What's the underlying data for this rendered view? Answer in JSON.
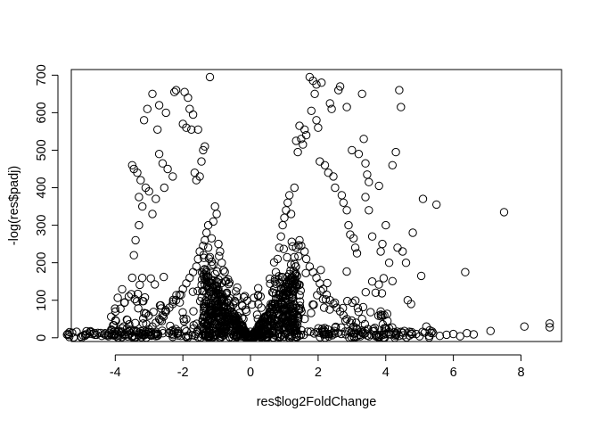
{
  "chart_data": {
    "type": "scatter",
    "title": "",
    "xlabel": "res$log2FoldChange",
    "ylabel": "-log(res$padj)",
    "xlim": [
      -5.3,
      9.2
    ],
    "ylim": [
      -10,
      715
    ],
    "xticks": [
      -4,
      -2,
      0,
      2,
      4,
      6,
      8
    ],
    "yticks": [
      0,
      100,
      200,
      300,
      400,
      500,
      600,
      700
    ],
    "xtick_labels": [
      "-4",
      "-2",
      "0",
      "2",
      "4",
      "6",
      "8"
    ],
    "ytick_labels": [
      "0",
      "100",
      "200",
      "300",
      "400",
      "500",
      "600",
      "700"
    ],
    "marker": "open-circle",
    "grid": false,
    "legend": "none",
    "colors": {
      "point": "#000000",
      "axis": "#000000",
      "background": "#ffffff"
    },
    "series": [
      {
        "values": [
          [
            -4.95,
            6
          ],
          [
            -4.6,
            8
          ],
          [
            -4.4,
            5
          ],
          [
            -4.3,
            12
          ],
          [
            -4.2,
            4
          ],
          [
            -4.1,
            20
          ],
          [
            -4.0,
            10
          ],
          [
            -3.9,
            6
          ],
          [
            -3.8,
            15
          ],
          [
            -3.75,
            30
          ],
          [
            -3.7,
            9
          ],
          [
            -3.6,
            18
          ],
          [
            -3.5,
            5
          ],
          [
            -3.6,
            110
          ],
          [
            -3.5,
            160
          ],
          [
            -3.45,
            220
          ],
          [
            -3.4,
            260
          ],
          [
            -3.3,
            300
          ],
          [
            -3.2,
            350
          ],
          [
            -3.5,
            460
          ],
          [
            -3.45,
            450
          ],
          [
            -3.35,
            440
          ],
          [
            -3.25,
            420
          ],
          [
            -3.1,
            400
          ],
          [
            -3.0,
            390
          ],
          [
            -3.3,
            375
          ],
          [
            -3.15,
            580
          ],
          [
            -3.05,
            610
          ],
          [
            -2.9,
            650
          ],
          [
            -2.7,
            620
          ],
          [
            -2.5,
            600
          ],
          [
            -2.25,
            655
          ],
          [
            -2.2,
            660
          ],
          [
            -1.95,
            655
          ],
          [
            -1.85,
            640
          ],
          [
            -1.8,
            610
          ],
          [
            -1.7,
            595
          ],
          [
            -2.0,
            570
          ],
          [
            -1.9,
            560
          ],
          [
            -1.75,
            555
          ],
          [
            -1.55,
            555
          ],
          [
            -1.35,
            510
          ],
          [
            -1.4,
            500
          ],
          [
            -1.45,
            470
          ],
          [
            -1.2,
            695
          ],
          [
            -1.5,
            430
          ],
          [
            -1.65,
            440
          ],
          [
            -1.6,
            420
          ],
          [
            -2.75,
            555
          ],
          [
            -2.7,
            490
          ],
          [
            -2.6,
            465
          ],
          [
            -2.45,
            450
          ],
          [
            -2.3,
            430
          ],
          [
            -2.55,
            400
          ],
          [
            -2.8,
            370
          ],
          [
            -2.9,
            330
          ],
          [
            -1.05,
            350
          ],
          [
            -1.0,
            330
          ],
          [
            -1.1,
            310
          ],
          [
            -1.25,
            300
          ],
          [
            -1.3,
            280
          ],
          [
            -1.15,
            265
          ],
          [
            -0.95,
            250
          ],
          [
            -0.9,
            230
          ],
          [
            -0.85,
            200
          ],
          [
            -0.8,
            180
          ],
          [
            -0.75,
            150
          ],
          [
            -0.7,
            120
          ],
          [
            -0.65,
            100
          ],
          [
            -0.6,
            85
          ],
          [
            -0.55,
            70
          ],
          [
            -0.5,
            55
          ],
          [
            -0.45,
            45
          ],
          [
            -0.4,
            35
          ],
          [
            -0.35,
            28
          ],
          [
            -0.3,
            20
          ],
          [
            -0.25,
            15
          ],
          [
            -0.2,
            10
          ],
          [
            -0.1,
            5
          ],
          [
            0.1,
            5
          ],
          [
            0.2,
            12
          ],
          [
            0.3,
            22
          ],
          [
            0.4,
            35
          ],
          [
            0.5,
            60
          ],
          [
            0.6,
            90
          ],
          [
            0.7,
            130
          ],
          [
            0.75,
            175
          ],
          [
            0.8,
            210
          ],
          [
            0.85,
            240
          ],
          [
            0.9,
            270
          ],
          [
            0.95,
            300
          ],
          [
            1.0,
            320
          ],
          [
            1.05,
            340
          ],
          [
            1.1,
            360
          ],
          [
            1.15,
            380
          ],
          [
            1.2,
            330
          ],
          [
            1.3,
            400
          ],
          [
            1.35,
            525
          ],
          [
            1.45,
            565
          ],
          [
            1.4,
            495
          ],
          [
            1.5,
            530
          ],
          [
            1.55,
            515
          ],
          [
            1.6,
            555
          ],
          [
            1.65,
            540
          ],
          [
            1.75,
            695
          ],
          [
            1.85,
            685
          ],
          [
            1.95,
            675
          ],
          [
            2.1,
            680
          ],
          [
            1.9,
            650
          ],
          [
            2.35,
            625
          ],
          [
            2.4,
            610
          ],
          [
            2.65,
            670
          ],
          [
            2.6,
            660
          ],
          [
            1.95,
            580
          ],
          [
            2.0,
            560
          ],
          [
            1.8,
            605
          ],
          [
            2.05,
            470
          ],
          [
            2.2,
            460
          ],
          [
            2.3,
            440
          ],
          [
            2.45,
            430
          ],
          [
            2.5,
            400
          ],
          [
            2.7,
            380
          ],
          [
            2.75,
            360
          ],
          [
            2.85,
            340
          ],
          [
            2.9,
            300
          ],
          [
            2.95,
            275
          ],
          [
            3.05,
            265
          ],
          [
            3.1,
            240
          ],
          [
            3.15,
            225
          ],
          [
            2.85,
            615
          ],
          [
            3.3,
            650
          ],
          [
            3.35,
            530
          ],
          [
            3.0,
            500
          ],
          [
            3.2,
            490
          ],
          [
            3.4,
            465
          ],
          [
            3.45,
            435
          ],
          [
            3.5,
            415
          ],
          [
            3.8,
            405
          ],
          [
            3.4,
            375
          ],
          [
            3.5,
            340
          ],
          [
            3.6,
            270
          ],
          [
            3.85,
            230
          ],
          [
            3.9,
            250
          ],
          [
            4.0,
            300
          ],
          [
            4.1,
            200
          ],
          [
            4.2,
            460
          ],
          [
            4.3,
            495
          ],
          [
            4.4,
            660
          ],
          [
            4.45,
            615
          ],
          [
            4.35,
            240
          ],
          [
            4.5,
            230
          ],
          [
            4.6,
            200
          ],
          [
            4.65,
            100
          ],
          [
            4.75,
            90
          ],
          [
            4.8,
            280
          ],
          [
            5.05,
            165
          ],
          [
            5.1,
            370
          ],
          [
            5.5,
            355
          ],
          [
            6.35,
            175
          ],
          [
            7.5,
            335
          ],
          [
            3.6,
            150
          ],
          [
            3.7,
            120
          ],
          [
            3.85,
            70
          ],
          [
            3.9,
            60
          ],
          [
            4.05,
            45
          ],
          [
            4.1,
            25
          ],
          [
            4.25,
            15
          ],
          [
            4.3,
            8
          ],
          [
            4.4,
            5
          ],
          [
            4.55,
            18
          ],
          [
            4.7,
            6
          ],
          [
            4.9,
            10
          ],
          [
            5.0,
            4
          ],
          [
            5.2,
            30
          ],
          [
            5.3,
            20
          ],
          [
            5.4,
            12
          ],
          [
            5.6,
            5
          ],
          [
            5.8,
            8
          ],
          [
            6.0,
            10
          ],
          [
            6.2,
            4
          ],
          [
            6.4,
            12
          ],
          [
            6.6,
            9
          ],
          [
            7.1,
            18
          ],
          [
            8.1,
            30
          ],
          [
            8.85,
            38
          ],
          [
            8.85,
            28
          ],
          [
            -0.85,
            90
          ],
          [
            -0.9,
            110
          ],
          [
            -0.95,
            130
          ],
          [
            -1.0,
            150
          ],
          [
            -1.05,
            170
          ],
          [
            -1.1,
            195
          ],
          [
            -1.2,
            215
          ],
          [
            -1.25,
            240
          ],
          [
            -1.35,
            260
          ],
          [
            -1.4,
            245
          ],
          [
            -1.5,
            230
          ],
          [
            -1.55,
            210
          ],
          [
            -1.6,
            190
          ],
          [
            -1.7,
            175
          ],
          [
            -1.8,
            160
          ],
          [
            -1.9,
            145
          ],
          [
            -2.0,
            130
          ],
          [
            -2.1,
            115
          ],
          [
            -2.2,
            100
          ],
          [
            -2.3,
            90
          ],
          [
            -2.4,
            80
          ],
          [
            -2.5,
            70
          ],
          [
            -2.6,
            60
          ],
          [
            -2.7,
            50
          ],
          [
            -2.8,
            40
          ],
          [
            -2.9,
            30
          ],
          [
            -3.0,
            22
          ],
          [
            -3.1,
            16
          ],
          [
            -3.2,
            10
          ],
          [
            -3.3,
            6
          ],
          [
            0.9,
            90
          ],
          [
            0.95,
            110
          ],
          [
            1.0,
            130
          ],
          [
            1.1,
            150
          ],
          [
            1.15,
            170
          ],
          [
            1.2,
            195
          ],
          [
            1.3,
            215
          ],
          [
            1.35,
            240
          ],
          [
            1.45,
            260
          ],
          [
            1.5,
            245
          ],
          [
            1.6,
            230
          ],
          [
            1.65,
            210
          ],
          [
            1.75,
            190
          ],
          [
            1.85,
            175
          ],
          [
            1.95,
            160
          ],
          [
            2.05,
            145
          ],
          [
            2.15,
            130
          ],
          [
            2.25,
            115
          ],
          [
            2.35,
            100
          ],
          [
            2.45,
            90
          ],
          [
            2.55,
            80
          ],
          [
            2.65,
            70
          ],
          [
            2.75,
            60
          ],
          [
            2.85,
            50
          ],
          [
            2.95,
            40
          ],
          [
            3.05,
            30
          ],
          [
            3.15,
            22
          ],
          [
            3.25,
            16
          ],
          [
            3.35,
            10
          ],
          [
            3.45,
            6
          ]
        ]
      }
    ]
  }
}
